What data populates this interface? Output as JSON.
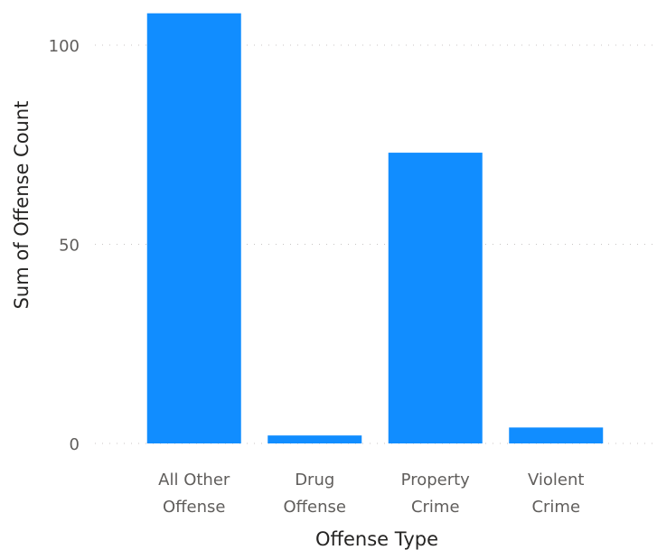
{
  "chart_data": {
    "type": "bar",
    "categories": [
      [
        "All Other",
        "Offense"
      ],
      [
        "Drug",
        "Offense"
      ],
      [
        "Property",
        "Crime"
      ],
      [
        "Violent",
        "Crime"
      ]
    ],
    "values": [
      108,
      2,
      73,
      4
    ],
    "xlabel": "Offense Type",
    "ylabel": "Sum of Offense Count",
    "yticks": [
      "0",
      "50",
      "100"
    ],
    "ylim": [
      0,
      100
    ],
    "grid": true,
    "bar_color": "#118DFF"
  }
}
